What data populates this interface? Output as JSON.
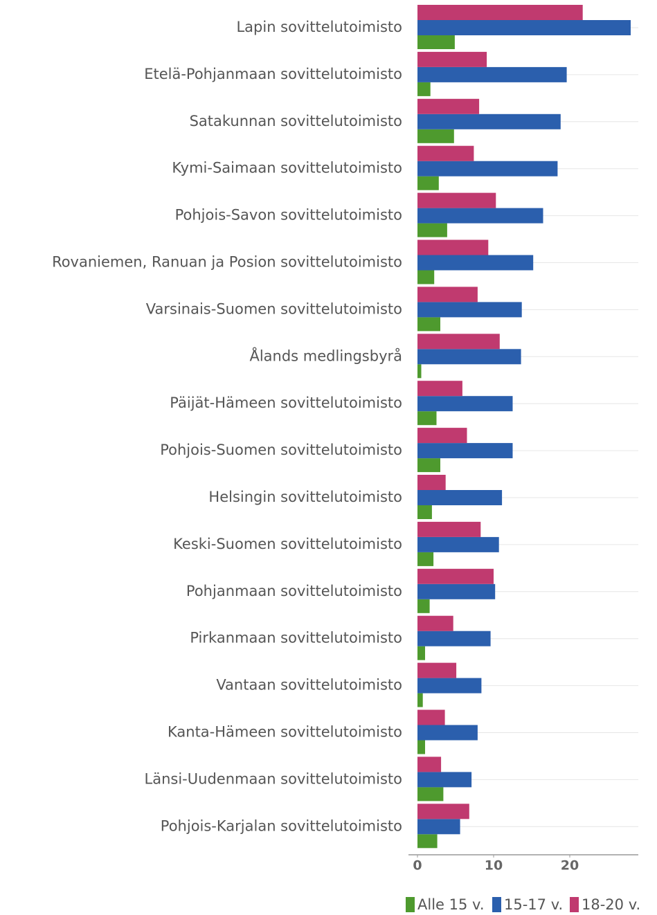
{
  "chart_data": {
    "type": "hbar",
    "categories": [
      "Lapin sovittelutoimisto",
      "Etelä-Pohjanmaan sovittelutoimisto",
      "Satakunnan sovittelutoimisto",
      "Kymi-Saimaan sovittelutoimisto",
      "Pohjois-Savon sovittelutoimisto",
      "Rovaniemen, Ranuan ja Posion sovittelutoimisto",
      "Varsinais-Suomen sovittelutoimisto",
      "Ålands medlingsbyrå",
      "Päijät-Hämeen sovittelutoimisto",
      "Pohjois-Suomen sovittelutoimisto",
      "Helsingin sovittelutoimisto",
      "Keski-Suomen sovittelutoimisto",
      "Pohjanmaan sovittelutoimisto",
      "Pirkanmaan sovittelutoimisto",
      "Vantaan sovittelutoimisto",
      "Kanta-Hämeen sovittelutoimisto",
      "Länsi-Uudenmaan sovittelutoimisto",
      "Pohjois-Karjalan sovittelutoimisto"
    ],
    "series": [
      {
        "name": "Alle 15 v.",
        "color": "#4e9a2e",
        "values": [
          4.9,
          1.7,
          4.8,
          2.8,
          3.9,
          2.2,
          3.0,
          0.5,
          2.5,
          3.0,
          1.9,
          2.1,
          1.6,
          1.0,
          0.7,
          1.0,
          3.4,
          2.6
        ]
      },
      {
        "name": "15-17 v.",
        "color": "#2b5fad",
        "values": [
          28.0,
          19.6,
          18.8,
          18.4,
          16.5,
          15.2,
          13.7,
          13.6,
          12.5,
          12.5,
          11.1,
          10.7,
          10.2,
          9.6,
          8.4,
          7.9,
          7.1,
          5.6
        ]
      },
      {
        "name": "18-20 v.",
        "color": "#c03a6f",
        "values": [
          21.7,
          9.1,
          8.1,
          7.4,
          10.3,
          9.3,
          7.9,
          10.8,
          5.9,
          6.5,
          3.7,
          8.3,
          10.0,
          4.7,
          5.1,
          3.6,
          3.1,
          6.8
        ]
      }
    ],
    "xlim": [
      0,
      29
    ],
    "xticks": [
      0,
      10,
      20
    ],
    "legend": "bottom"
  }
}
